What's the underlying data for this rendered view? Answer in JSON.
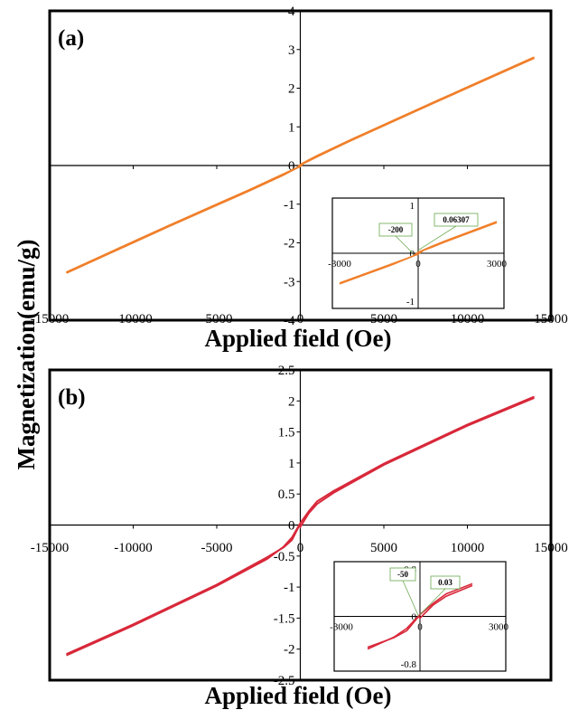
{
  "y_axis_label": "Magnetization(emu/g)",
  "chart_data": [
    {
      "type": "line",
      "panel_label": "(a)",
      "xlabel": "Applied field (Oe)",
      "ylabel": "",
      "xlim": [
        -15000,
        15000
      ],
      "ylim": [
        -4,
        4
      ],
      "x_ticks": [
        "-15000",
        "-10000",
        "-5000",
        "0",
        "5000",
        "10000",
        "15000"
      ],
      "y_ticks": [
        "4",
        "3",
        "2",
        "1",
        "0",
        "-1",
        "-2",
        "-3",
        "-4"
      ],
      "grid": false,
      "color": "#f07f2a",
      "series": [
        {
          "values": [
            [
              -14000,
              -2.78
            ],
            [
              -8000,
              -1.6
            ],
            [
              -3000,
              -0.64
            ],
            [
              -1000,
              -0.24
            ],
            [
              -200,
              -0.06
            ],
            [
              0,
              0.02
            ],
            [
              500,
              0.14
            ],
            [
              1000,
              0.25
            ],
            [
              3000,
              0.66
            ],
            [
              8000,
              1.64
            ],
            [
              14000,
              2.8
            ]
          ]
        },
        {
          "values": [
            [
              -14000,
              -2.76
            ],
            [
              -8000,
              -1.58
            ],
            [
              -3000,
              -0.62
            ],
            [
              -1000,
              -0.22
            ],
            [
              0,
              -0.02
            ],
            [
              200,
              0.06
            ],
            [
              500,
              0.12
            ],
            [
              1000,
              0.23
            ],
            [
              3000,
              0.64
            ],
            [
              8000,
              1.62
            ],
            [
              14000,
              2.78
            ]
          ]
        }
      ],
      "inset": {
        "xlim": [
          -3000,
          3000
        ],
        "ylim": [
          -1,
          1
        ],
        "x_ticks": [
          "-3000",
          "0",
          "3000"
        ],
        "y_ticks": [
          "1",
          "0",
          "-1"
        ],
        "annotations": [
          {
            "text": "-200",
            "x": -200,
            "y": 0
          },
          {
            "text": "0.06307",
            "x": 0,
            "y": 0.06307
          }
        ]
      }
    },
    {
      "type": "line",
      "panel_label": "(b)",
      "xlabel": "Applied field (Oe)",
      "ylabel": "",
      "xlim": [
        -15000,
        15000
      ],
      "ylim": [
        -2.5,
        2.5
      ],
      "x_ticks": [
        "-15000",
        "-10000",
        "-5000",
        "0",
        "5000",
        "10000",
        "15000"
      ],
      "y_ticks": [
        "2.5",
        "2",
        "1.5",
        "1",
        "0.5",
        "0",
        "-0.5",
        "-1",
        "-1.5",
        "-2",
        "-2.5"
      ],
      "grid": false,
      "color": "#d8283a",
      "series": [
        {
          "values": [
            [
              -14000,
              -2.1
            ],
            [
              -10000,
              -1.62
            ],
            [
              -5000,
              -0.98
            ],
            [
              -2000,
              -0.55
            ],
            [
              -1000,
              -0.35
            ],
            [
              -500,
              -0.2
            ],
            [
              0,
              0.03
            ],
            [
              500,
              0.22
            ],
            [
              1000,
              0.38
            ],
            [
              2000,
              0.55
            ],
            [
              5000,
              0.99
            ],
            [
              10000,
              1.62
            ],
            [
              14000,
              2.07
            ]
          ]
        },
        {
          "values": [
            [
              -14000,
              -2.08
            ],
            [
              -10000,
              -1.6
            ],
            [
              -5000,
              -0.96
            ],
            [
              -2000,
              -0.52
            ],
            [
              -1000,
              -0.36
            ],
            [
              -500,
              -0.24
            ],
            [
              -50,
              0
            ],
            [
              0,
              -0.03
            ],
            [
              500,
              0.19
            ],
            [
              1000,
              0.34
            ],
            [
              2000,
              0.52
            ],
            [
              5000,
              0.97
            ],
            [
              10000,
              1.6
            ],
            [
              14000,
              2.05
            ]
          ]
        }
      ],
      "inset": {
        "xlim": [
          -3000,
          3000
        ],
        "ylim": [
          -0.8,
          0.8
        ],
        "x_ticks": [
          "-3000",
          "0",
          "3000"
        ],
        "y_ticks": [
          "0.8",
          "0",
          "-0.8"
        ],
        "annotations": [
          {
            "text": "-50",
            "x": -50,
            "y": 0
          },
          {
            "text": "0.03",
            "x": 0,
            "y": 0.03
          }
        ]
      }
    }
  ]
}
